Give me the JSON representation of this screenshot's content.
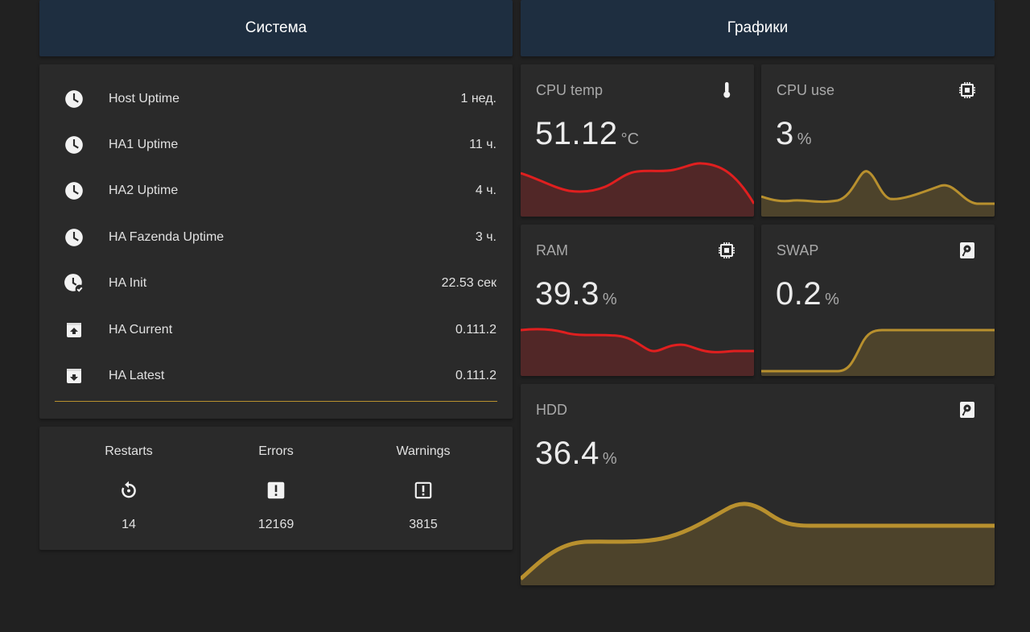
{
  "headers": {
    "system": "Система",
    "graphs": "Графики"
  },
  "system": {
    "rows": [
      {
        "name": "Host Uptime",
        "state": "1 нед.",
        "icon": "clock-icon"
      },
      {
        "name": "HA1 Uptime",
        "state": "11 ч.",
        "icon": "clock-icon"
      },
      {
        "name": "HA2 Uptime",
        "state": "4 ч.",
        "icon": "clock-icon"
      },
      {
        "name": "HA Fazenda Uptime",
        "state": "3 ч.",
        "icon": "clock-icon"
      },
      {
        "name": "HA Init",
        "state": "22.53 сек",
        "icon": "clock-check-icon"
      },
      {
        "name": "HA Current",
        "state": "0.111.2",
        "icon": "package-up-icon"
      },
      {
        "name": "HA Latest",
        "state": "0.111.2",
        "icon": "package-down-icon"
      }
    ]
  },
  "glance": [
    {
      "name": "Restarts",
      "value": "14",
      "icon": "restart-icon"
    },
    {
      "name": "Errors",
      "value": "12169",
      "icon": "alert-box-icon"
    },
    {
      "name": "Warnings",
      "value": "3815",
      "icon": "alert-box-icon"
    }
  ],
  "sensors": {
    "cpu_temp": {
      "name": "CPU temp",
      "value": "51.12",
      "unit": "°C",
      "icon": "thermometer-icon",
      "color": "#e01f1f"
    },
    "cpu_use": {
      "name": "CPU use",
      "value": "3",
      "unit": "%",
      "icon": "chip-icon",
      "color": "#b8902e"
    },
    "ram": {
      "name": "RAM",
      "value": "39.3",
      "unit": "%",
      "icon": "chip-icon",
      "color": "#e01f1f"
    },
    "swap": {
      "name": "SWAP",
      "value": "0.2",
      "unit": "%",
      "icon": "harddisk-icon",
      "color": "#b8902e"
    },
    "hdd": {
      "name": "HDD",
      "value": "36.4",
      "unit": "%",
      "icon": "harddisk-icon",
      "color": "#b8902e"
    }
  }
}
